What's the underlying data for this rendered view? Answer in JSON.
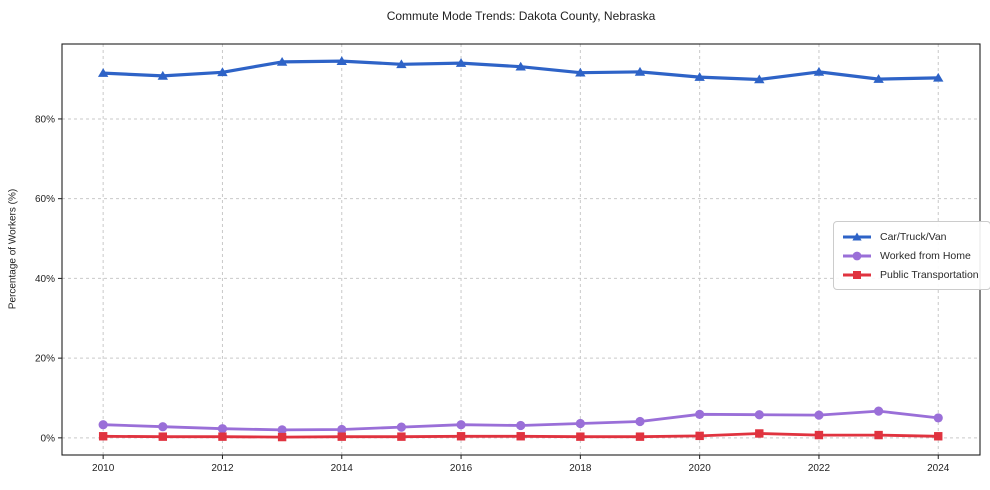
{
  "chart_data": {
    "type": "line",
    "title": "Commute Mode Trends: Dakota County, Nebraska",
    "xlabel": "",
    "ylabel": "Percentage of Workers (%)",
    "x": [
      2010,
      2011,
      2012,
      2013,
      2014,
      2015,
      2016,
      2017,
      2018,
      2019,
      2020,
      2021,
      2022,
      2023,
      2024
    ],
    "series": [
      {
        "name": "Car/Truck/Van",
        "marker": "triangle",
        "color": "#2e63c7",
        "values": [
          91.5,
          90.8,
          91.7,
          94.3,
          94.5,
          93.7,
          94.0,
          93.1,
          91.6,
          91.8,
          90.5,
          89.9,
          91.8,
          90.0,
          90.3
        ]
      },
      {
        "name": "Worked from Home",
        "marker": "circle",
        "color": "#9a6fd8",
        "values": [
          3.3,
          2.8,
          2.3,
          2.0,
          2.1,
          2.7,
          3.3,
          3.1,
          3.6,
          4.1,
          5.9,
          5.8,
          5.7,
          6.7,
          5.0
        ]
      },
      {
        "name": "Public Transportation",
        "marker": "square",
        "color": "#e0333f",
        "values": [
          0.4,
          0.3,
          0.3,
          0.2,
          0.3,
          0.3,
          0.4,
          0.4,
          0.3,
          0.3,
          0.5,
          1.1,
          0.7,
          0.7,
          0.4
        ]
      }
    ],
    "x_ticks": [
      {
        "value": 2010,
        "label": "2010"
      },
      {
        "value": 2012,
        "label": "2012"
      },
      {
        "value": 2014,
        "label": "2014"
      },
      {
        "value": 2016,
        "label": "2016"
      },
      {
        "value": 2018,
        "label": "2018"
      },
      {
        "value": 2020,
        "label": "2020"
      },
      {
        "value": 2022,
        "label": "2022"
      },
      {
        "value": 2024,
        "label": "2024"
      }
    ],
    "y_ticks": [
      {
        "value": 0,
        "label": "0%"
      },
      {
        "value": 20,
        "label": "20%"
      },
      {
        "value": 40,
        "label": "40%"
      },
      {
        "value": 60,
        "label": "60%"
      },
      {
        "value": 80,
        "label": "80%"
      }
    ],
    "xlim": [
      2009.31,
      2024.7
    ],
    "ylim": [
      -4.3,
      98.8
    ],
    "grid": true,
    "legend_position": "center-right",
    "colors": {
      "grid": "#c9c9c9",
      "frame": "#1f1f1f",
      "text": "#1f1f1f",
      "background": "#ffffff"
    }
  }
}
